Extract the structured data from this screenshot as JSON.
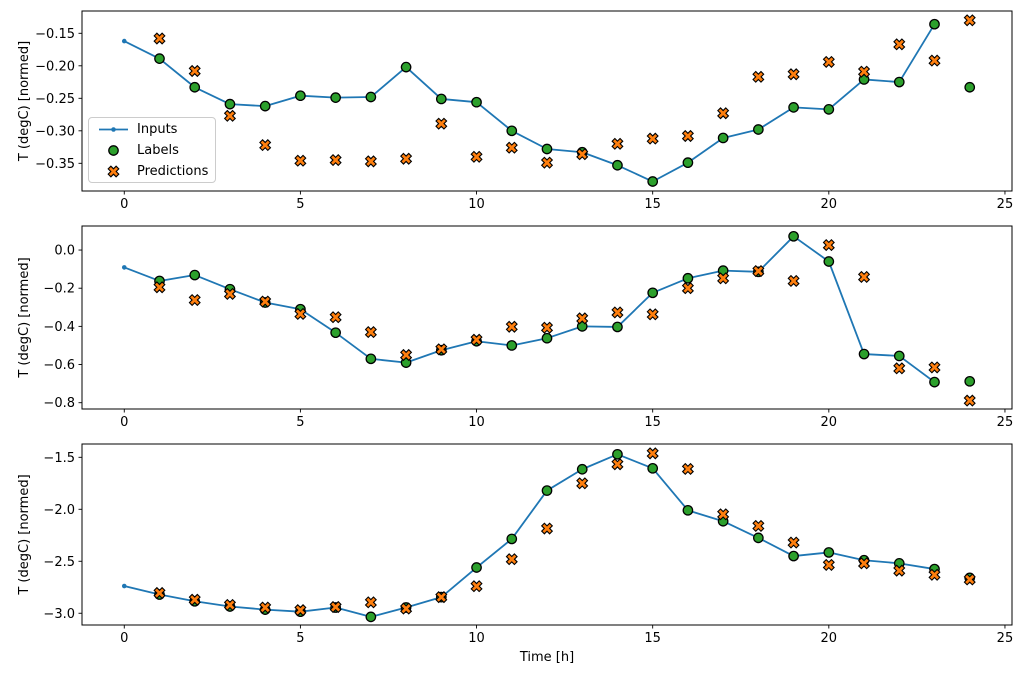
{
  "figure": {
    "background": "#ffffff",
    "frame_color": "#000000",
    "legend": {
      "items": [
        {
          "label": "Inputs",
          "marker": "line-with-dot",
          "color": "#1f77b4"
        },
        {
          "label": "Labels",
          "marker": "filled-circle",
          "color": "#2ca02c",
          "edge_color": "#000000"
        },
        {
          "label": "Predictions",
          "marker": "filled-x",
          "color": "#ff7f0e",
          "edge_color": "#000000"
        }
      ]
    }
  },
  "chart_data": [
    {
      "type": "line",
      "title": "",
      "xlabel": "",
      "ylabel": "T (degC) [normed]",
      "xlim": [
        -1.2,
        25.2
      ],
      "ylim": [
        -0.3926,
        -0.1157
      ],
      "grid": false,
      "legend_position": "center-left",
      "xticks": [
        {
          "v": 0,
          "label": "0"
        },
        {
          "v": 5,
          "label": "5"
        },
        {
          "v": 10,
          "label": "10"
        },
        {
          "v": 15,
          "label": "15"
        },
        {
          "v": 20,
          "label": "20"
        },
        {
          "v": 25,
          "label": "25"
        }
      ],
      "yticks": [
        {
          "v": -0.15,
          "label": "−0.15"
        },
        {
          "v": -0.2,
          "label": "−0.20"
        },
        {
          "v": -0.25,
          "label": "−0.25"
        },
        {
          "v": -0.3,
          "label": "−0.30"
        },
        {
          "v": -0.35,
          "label": "−0.35"
        }
      ],
      "series": [
        {
          "name": "Inputs",
          "kind": "line",
          "marker": "dot",
          "color": "#1f77b4",
          "x": [
            0,
            1,
            2,
            3,
            4,
            5,
            6,
            7,
            8,
            9,
            10,
            11,
            12,
            13,
            14,
            15,
            16,
            17,
            18,
            19,
            20,
            21,
            22,
            23
          ],
          "values": [
            -0.162,
            -0.189,
            -0.233,
            -0.259,
            -0.262,
            -0.246,
            -0.249,
            -0.248,
            -0.202,
            -0.251,
            -0.256,
            -0.3,
            -0.328,
            -0.333,
            -0.353,
            -0.378,
            -0.349,
            -0.311,
            -0.298,
            -0.264,
            -0.267,
            -0.221,
            -0.225,
            -0.136
          ]
        },
        {
          "name": "Labels",
          "kind": "scatter",
          "marker": "circle",
          "color": "#2ca02c",
          "edge_color": "#000000",
          "x": [
            1,
            2,
            3,
            4,
            5,
            6,
            7,
            8,
            9,
            10,
            11,
            12,
            13,
            14,
            15,
            16,
            17,
            18,
            19,
            20,
            21,
            22,
            23,
            24
          ],
          "values": [
            -0.189,
            -0.233,
            -0.259,
            -0.262,
            -0.246,
            -0.249,
            -0.248,
            -0.202,
            -0.251,
            -0.256,
            -0.3,
            -0.328,
            -0.333,
            -0.353,
            -0.378,
            -0.349,
            -0.311,
            -0.298,
            -0.264,
            -0.267,
            -0.221,
            -0.225,
            -0.136,
            -0.233
          ]
        },
        {
          "name": "Predictions",
          "kind": "scatter",
          "marker": "X",
          "color": "#ff7f0e",
          "edge_color": "#000000",
          "x": [
            1,
            2,
            3,
            4,
            5,
            6,
            7,
            8,
            9,
            10,
            11,
            12,
            13,
            14,
            15,
            16,
            17,
            18,
            19,
            20,
            21,
            22,
            23,
            24
          ],
          "values": [
            -0.158,
            -0.208,
            -0.277,
            -0.322,
            -0.346,
            -0.345,
            -0.347,
            -0.343,
            -0.289,
            -0.34,
            -0.326,
            -0.349,
            -0.336,
            -0.32,
            -0.312,
            -0.308,
            -0.273,
            -0.217,
            -0.213,
            -0.194,
            -0.209,
            -0.167,
            -0.192,
            -0.13
          ]
        }
      ]
    },
    {
      "type": "line",
      "title": "",
      "xlabel": "",
      "ylabel": "T (degC) [normed]",
      "xlim": [
        -1.2,
        25.2
      ],
      "ylim": [
        -0.833,
        0.126
      ],
      "grid": false,
      "xticks": [
        {
          "v": 0,
          "label": "0"
        },
        {
          "v": 5,
          "label": "5"
        },
        {
          "v": 10,
          "label": "10"
        },
        {
          "v": 15,
          "label": "15"
        },
        {
          "v": 20,
          "label": "20"
        },
        {
          "v": 25,
          "label": "25"
        }
      ],
      "yticks": [
        {
          "v": 0.0,
          "label": "0.0"
        },
        {
          "v": -0.2,
          "label": "−0.2"
        },
        {
          "v": -0.4,
          "label": "−0.4"
        },
        {
          "v": -0.6,
          "label": "−0.6"
        },
        {
          "v": -0.8,
          "label": "−0.8"
        }
      ],
      "series": [
        {
          "name": "Inputs",
          "kind": "line",
          "marker": "dot",
          "color": "#1f77b4",
          "x": [
            0,
            1,
            2,
            3,
            4,
            5,
            6,
            7,
            8,
            9,
            10,
            11,
            12,
            13,
            14,
            15,
            16,
            17,
            18,
            19,
            20,
            21,
            22,
            23
          ],
          "values": [
            -0.091,
            -0.162,
            -0.131,
            -0.205,
            -0.275,
            -0.31,
            -0.433,
            -0.57,
            -0.59,
            -0.525,
            -0.478,
            -0.5,
            -0.462,
            -0.4,
            -0.403,
            -0.224,
            -0.148,
            -0.108,
            -0.114,
            0.072,
            -0.06,
            -0.545,
            -0.555,
            -0.692
          ]
        },
        {
          "name": "Labels",
          "kind": "scatter",
          "marker": "circle",
          "color": "#2ca02c",
          "edge_color": "#000000",
          "x": [
            1,
            2,
            3,
            4,
            5,
            6,
            7,
            8,
            9,
            10,
            11,
            12,
            13,
            14,
            15,
            16,
            17,
            18,
            19,
            20,
            21,
            22,
            23,
            24
          ],
          "values": [
            -0.162,
            -0.131,
            -0.205,
            -0.275,
            -0.31,
            -0.433,
            -0.57,
            -0.59,
            -0.525,
            -0.478,
            -0.5,
            -0.462,
            -0.4,
            -0.403,
            -0.224,
            -0.148,
            -0.108,
            -0.114,
            0.072,
            -0.06,
            -0.545,
            -0.555,
            -0.692,
            -0.688
          ]
        },
        {
          "name": "Predictions",
          "kind": "scatter",
          "marker": "X",
          "color": "#ff7f0e",
          "edge_color": "#000000",
          "x": [
            1,
            2,
            3,
            4,
            5,
            6,
            7,
            8,
            9,
            10,
            11,
            12,
            13,
            14,
            15,
            16,
            17,
            18,
            19,
            20,
            21,
            22,
            23,
            24
          ],
          "values": [
            -0.195,
            -0.262,
            -0.23,
            -0.27,
            -0.335,
            -0.352,
            -0.43,
            -0.55,
            -0.52,
            -0.47,
            -0.402,
            -0.407,
            -0.358,
            -0.327,
            -0.337,
            -0.2,
            -0.148,
            -0.11,
            -0.162,
            0.026,
            -0.141,
            -0.62,
            -0.615,
            -0.789
          ]
        }
      ]
    },
    {
      "type": "line",
      "title": "",
      "xlabel": "Time [h]",
      "ylabel": "T (degC) [normed]",
      "xlim": [
        -1.2,
        25.2
      ],
      "ylim": [
        -3.113,
        -1.372
      ],
      "grid": false,
      "xticks": [
        {
          "v": 0,
          "label": "0"
        },
        {
          "v": 5,
          "label": "5"
        },
        {
          "v": 10,
          "label": "10"
        },
        {
          "v": 15,
          "label": "15"
        },
        {
          "v": 20,
          "label": "20"
        },
        {
          "v": 25,
          "label": "25"
        }
      ],
      "yticks": [
        {
          "v": -1.5,
          "label": "−1.5"
        },
        {
          "v": -2.0,
          "label": "−2.0"
        },
        {
          "v": -2.5,
          "label": "−2.5"
        },
        {
          "v": -3.0,
          "label": "−3.0"
        }
      ],
      "series": [
        {
          "name": "Inputs",
          "kind": "line",
          "marker": "dot",
          "color": "#1f77b4",
          "x": [
            0,
            1,
            2,
            3,
            4,
            5,
            6,
            7,
            8,
            9,
            10,
            11,
            12,
            13,
            14,
            15,
            16,
            17,
            18,
            19,
            20,
            21,
            22,
            23
          ],
          "values": [
            -2.738,
            -2.82,
            -2.885,
            -2.935,
            -2.965,
            -2.985,
            -2.945,
            -3.035,
            -2.945,
            -2.845,
            -2.56,
            -2.285,
            -1.82,
            -1.615,
            -1.471,
            -1.606,
            -2.01,
            -2.115,
            -2.275,
            -2.45,
            -2.415,
            -2.49,
            -2.52,
            -2.575
          ]
        },
        {
          "name": "Labels",
          "kind": "scatter",
          "marker": "circle",
          "color": "#2ca02c",
          "edge_color": "#000000",
          "x": [
            1,
            2,
            3,
            4,
            5,
            6,
            7,
            8,
            9,
            10,
            11,
            12,
            13,
            14,
            15,
            16,
            17,
            18,
            19,
            20,
            21,
            22,
            23,
            24
          ],
          "values": [
            -2.82,
            -2.885,
            -2.935,
            -2.965,
            -2.985,
            -2.945,
            -3.035,
            -2.945,
            -2.845,
            -2.56,
            -2.285,
            -1.82,
            -1.615,
            -1.471,
            -1.606,
            -2.01,
            -2.115,
            -2.275,
            -2.45,
            -2.415,
            -2.49,
            -2.52,
            -2.575,
            -2.66
          ]
        },
        {
          "name": "Predictions",
          "kind": "scatter",
          "marker": "X",
          "color": "#ff7f0e",
          "edge_color": "#000000",
          "x": [
            1,
            2,
            3,
            4,
            5,
            6,
            7,
            8,
            9,
            10,
            11,
            12,
            13,
            14,
            15,
            16,
            17,
            18,
            19,
            20,
            21,
            22,
            23,
            24
          ],
          "values": [
            -2.805,
            -2.87,
            -2.92,
            -2.945,
            -2.97,
            -2.94,
            -2.895,
            -2.955,
            -2.845,
            -2.74,
            -2.48,
            -2.185,
            -1.75,
            -1.567,
            -1.462,
            -1.612,
            -2.048,
            -2.16,
            -2.32,
            -2.535,
            -2.52,
            -2.59,
            -2.63,
            -2.675
          ]
        }
      ]
    }
  ]
}
